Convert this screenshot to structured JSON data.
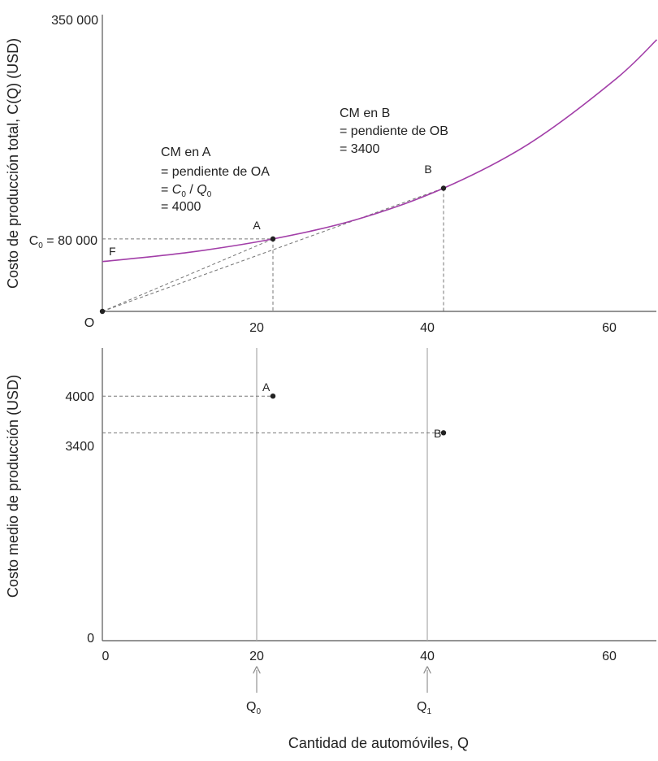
{
  "chart_data": [
    {
      "type": "line",
      "panel": "top",
      "ylabel": "Costo de producción total, C(Q) (USD)",
      "xlim": [
        0,
        65
      ],
      "ylim": [
        0,
        350000
      ],
      "x_ticks": [
        "20",
        "40",
        "60"
      ],
      "y_ticks": [
        "350 000"
      ],
      "origin_label": "O",
      "c0_label": {
        "main": "C",
        "sub": "0",
        "value": " = 80 000"
      },
      "series": [
        {
          "name": "C(Q)",
          "color": "#a23ea8",
          "x": [
            0,
            10,
            20,
            30,
            40,
            50,
            60,
            65
          ],
          "y": [
            55000,
            65000,
            80000,
            102000,
            136000,
            185000,
            255000,
            300000
          ]
        }
      ],
      "rays": [
        {
          "from": [
            0,
            0
          ],
          "to": [
            20,
            80000
          ]
        },
        {
          "from": [
            0,
            0
          ],
          "to": [
            40,
            136000
          ]
        }
      ],
      "points": [
        {
          "label": "A",
          "x": 20,
          "y": 80000
        },
        {
          "label": "B",
          "x": 40,
          "y": 136000
        },
        {
          "label": "F",
          "x": 0,
          "y": 55000
        }
      ],
      "annotations": {
        "a": {
          "line1": "CM en A",
          "line2": "= pendiente de OA",
          "prefix": "= ",
          "c": "C",
          "c_sub": "0",
          "slash": " / ",
          "q": "Q",
          "q_sub": "0",
          "line4": "= 4000"
        },
        "b": {
          "line1": "CM en B",
          "line2": "= pendiente de OB",
          "line3": "= 3400"
        }
      }
    },
    {
      "type": "scatter",
      "panel": "bottom",
      "ylabel": "Costo medio de producción (USD)",
      "xlabel": "Cantidad de automóviles, Q",
      "xlim": [
        0,
        65
      ],
      "x_ticks": [
        "0",
        "20",
        "40",
        "60"
      ],
      "y_ticks": [
        "4000",
        "3400",
        "0"
      ],
      "points": [
        {
          "label": "A",
          "x": 20,
          "y": 4000
        },
        {
          "label": "B",
          "x": 40,
          "y": 3400
        }
      ],
      "q_markers": [
        {
          "main": "Q",
          "sub": "0",
          "x": 20
        },
        {
          "main": "Q",
          "sub": "1",
          "x": 40
        }
      ]
    }
  ]
}
